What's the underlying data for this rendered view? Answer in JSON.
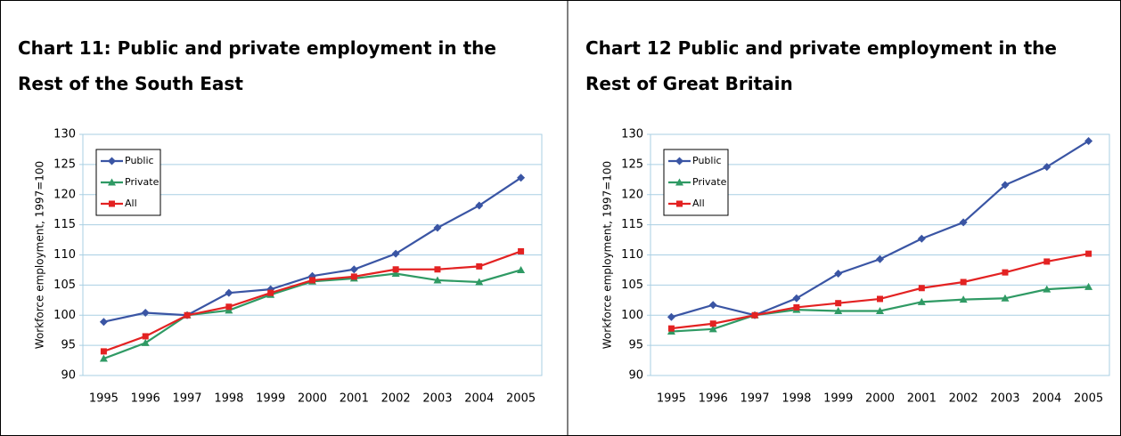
{
  "chart_data": [
    {
      "type": "line",
      "title": "Chart 11: Public and private employment in the Rest of the South East",
      "y_label": "Workforce employment, 1997=100",
      "categories": [
        "1995",
        "1996",
        "1997",
        "1998",
        "1999",
        "2000",
        "2001",
        "2002",
        "2003",
        "2004",
        "2005"
      ],
      "series": [
        {
          "name": "Public",
          "color": "#3a55a4",
          "marker": "diamond",
          "values": [
            98.9,
            100.4,
            100,
            103.7,
            104.3,
            106.5,
            107.6,
            110.2,
            114.5,
            118.2,
            122.8
          ]
        },
        {
          "name": "Private",
          "color": "#2f9a64",
          "marker": "triangle",
          "values": [
            92.8,
            95.4,
            100,
            100.8,
            103.4,
            105.6,
            106.1,
            106.9,
            105.8,
            105.5,
            107.5
          ]
        },
        {
          "name": "All",
          "color": "#e32222",
          "marker": "square",
          "values": [
            94,
            96.5,
            100,
            101.4,
            103.7,
            105.8,
            106.4,
            107.6,
            107.6,
            108.1,
            110.6
          ]
        }
      ],
      "ylim": [
        90,
        130
      ],
      "yticks": [
        90,
        95,
        100,
        105,
        110,
        115,
        120,
        125,
        130
      ],
      "grid": true,
      "legend": "top-left"
    },
    {
      "type": "line",
      "title": "Chart 12 Public and private employment in the Rest of Great Britain",
      "y_label": "Workforce employment, 1997=100",
      "categories": [
        "1995",
        "1996",
        "1997",
        "1998",
        "1999",
        "2000",
        "2001",
        "2002",
        "2003",
        "2004",
        "2005"
      ],
      "series": [
        {
          "name": "Public",
          "color": "#3a55a4",
          "marker": "diamond",
          "values": [
            99.7,
            101.7,
            100,
            102.8,
            106.9,
            109.3,
            112.7,
            115.4,
            121.6,
            124.6,
            128.9
          ]
        },
        {
          "name": "Private",
          "color": "#2f9a64",
          "marker": "triangle",
          "values": [
            97.3,
            97.7,
            100,
            100.9,
            100.7,
            100.7,
            102.2,
            102.6,
            102.8,
            104.3,
            104.7
          ]
        },
        {
          "name": "All",
          "color": "#e32222",
          "marker": "square",
          "values": [
            97.8,
            98.6,
            100,
            101.3,
            102,
            102.7,
            104.5,
            105.5,
            107.1,
            108.9,
            110.2
          ]
        }
      ],
      "ylim": [
        90,
        130
      ],
      "yticks": [
        90,
        95,
        100,
        105,
        110,
        115,
        120,
        125,
        130
      ],
      "grid": true,
      "legend": "top-left"
    }
  ]
}
